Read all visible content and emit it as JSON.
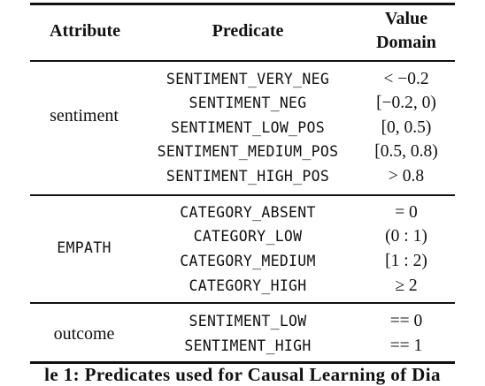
{
  "table": {
    "headers": {
      "attribute": "Attribute",
      "predicate": "Predicate",
      "value_domain_line1": "Value",
      "value_domain_line2": "Domain"
    },
    "groups": [
      {
        "attribute": "sentiment",
        "rows": [
          {
            "predicate": "SENTIMENT_VERY_NEG",
            "domain": "< −0.2"
          },
          {
            "predicate": "SENTIMENT_NEG",
            "domain": "[−0.2, 0)"
          },
          {
            "predicate": "SENTIMENT_LOW_POS",
            "domain": "[0, 0.5)"
          },
          {
            "predicate": "SENTIMENT_MEDIUM_POS",
            "domain": "[0.5, 0.8)"
          },
          {
            "predicate": "SENTIMENT_HIGH_POS",
            "domain": "> 0.8"
          }
        ]
      },
      {
        "attribute": "EMPATH",
        "rows": [
          {
            "predicate": "CATEGORY_ABSENT",
            "domain": "= 0"
          },
          {
            "predicate": "CATEGORY_LOW",
            "domain": "(0 : 1)"
          },
          {
            "predicate": "CATEGORY_MEDIUM",
            "domain": "[1 : 2)"
          },
          {
            "predicate": "CATEGORY_HIGH",
            "domain": "≥ 2"
          }
        ]
      },
      {
        "attribute": "outcome",
        "rows": [
          {
            "predicate": "SENTIMENT_LOW",
            "domain": "== 0"
          },
          {
            "predicate": "SENTIMENT_HIGH",
            "domain": "== 1"
          }
        ]
      }
    ]
  },
  "caption": "le 1: Predicates used for Causal Learning of Dia"
}
